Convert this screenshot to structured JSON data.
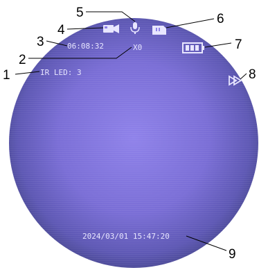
{
  "screen": {
    "ir_led": "IR LED: 3",
    "elapsed_time": "06:08:32",
    "zoom": "X0",
    "datetime": "2024/03/01 15:47:20",
    "colors": {
      "screen_center": "#8e80e8",
      "screen_edge": "#4a4a92",
      "osd_text": "#e8e6ff"
    },
    "icons": [
      "video-camera-icon",
      "microphone-icon",
      "sd-card-icon",
      "battery-icon",
      "playback-icon"
    ]
  },
  "callouts": [
    {
      "number": "1",
      "target": "ir-led-status"
    },
    {
      "number": "2",
      "target": "zoom-level"
    },
    {
      "number": "3",
      "target": "elapsed-time"
    },
    {
      "number": "4",
      "target": "video-camera-icon"
    },
    {
      "number": "5",
      "target": "microphone-icon"
    },
    {
      "number": "6",
      "target": "sd-card-icon"
    },
    {
      "number": "7",
      "target": "battery-icon"
    },
    {
      "number": "8",
      "target": "playback-icon"
    },
    {
      "number": "9",
      "target": "date-time"
    }
  ]
}
